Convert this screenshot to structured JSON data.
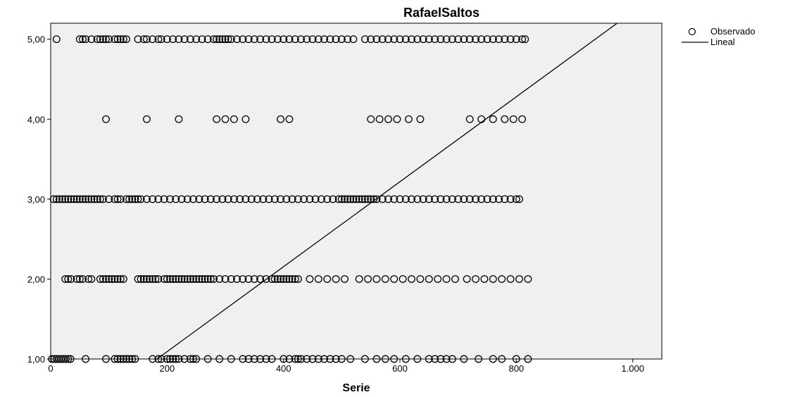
{
  "chart_data": {
    "type": "scatter",
    "title": "RafaelSaltos",
    "xlabel": "Serie",
    "ylabel": "",
    "xlim": [
      0,
      1050
    ],
    "ylim": [
      1,
      5.2
    ],
    "x_ticks": [
      {
        "value": 0,
        "label": "0"
      },
      {
        "value": 200,
        "label": "200"
      },
      {
        "value": 400,
        "label": "400"
      },
      {
        "value": 600,
        "label": "600"
      },
      {
        "value": 800,
        "label": "800"
      },
      {
        "value": 1000,
        "label": "1.000"
      }
    ],
    "y_ticks": [
      {
        "value": 1,
        "label": "1,00"
      },
      {
        "value": 2,
        "label": "2,00"
      },
      {
        "value": 3,
        "label": "3,00"
      },
      {
        "value": 4,
        "label": "4,00"
      },
      {
        "value": 5,
        "label": "5,00"
      }
    ],
    "legend": {
      "position": "top-right",
      "entries": [
        {
          "label": "Observado",
          "marker": "open-circle"
        },
        {
          "label": "Lineal",
          "marker": "line"
        }
      ]
    },
    "grid": false,
    "plot_background": "#f0f0f0",
    "series": [
      {
        "name": "Observado",
        "kind": "scatter",
        "points": [
          {
            "y": 5,
            "x": [
              10,
              50,
              55,
              60,
              70,
              80,
              85,
              90,
              95,
              100,
              110,
              115,
              120,
              125,
              130,
              150,
              160,
              165,
              175,
              185,
              190,
              200,
              210,
              220,
              230,
              240,
              250,
              260,
              270,
              280,
              285,
              290,
              295,
              300,
              305,
              310,
              320,
              330,
              340,
              350,
              360,
              370,
              380,
              390,
              400,
              410,
              420,
              430,
              440,
              450,
              460,
              470,
              480,
              490,
              500,
              510,
              520,
              540,
              550,
              560,
              570,
              580,
              590,
              600,
              610,
              620,
              630,
              640,
              650,
              660,
              670,
              680,
              690,
              700,
              710,
              720,
              730,
              740,
              750,
              760,
              770,
              780,
              790,
              800,
              810,
              815
            ]
          },
          {
            "y": 4,
            "x": [
              95,
              165,
              220,
              285,
              300,
              315,
              335,
              395,
              410,
              550,
              565,
              580,
              595,
              615,
              635,
              720,
              740,
              760,
              780,
              795,
              810
            ]
          },
          {
            "y": 3,
            "x": [
              5,
              10,
              15,
              20,
              25,
              30,
              35,
              40,
              45,
              50,
              55,
              60,
              65,
              70,
              75,
              80,
              85,
              90,
              100,
              110,
              115,
              120,
              130,
              135,
              140,
              145,
              150,
              155,
              165,
              175,
              185,
              195,
              205,
              215,
              225,
              235,
              245,
              255,
              265,
              275,
              285,
              295,
              305,
              315,
              325,
              335,
              345,
              355,
              365,
              375,
              385,
              395,
              405,
              415,
              425,
              435,
              445,
              455,
              465,
              475,
              485,
              495,
              500,
              505,
              510,
              515,
              520,
              525,
              530,
              535,
              540,
              545,
              550,
              555,
              560,
              570,
              580,
              590,
              600,
              610,
              620,
              630,
              640,
              650,
              660,
              670,
              680,
              690,
              700,
              710,
              720,
              730,
              740,
              750,
              760,
              770,
              780,
              790,
              800,
              805
            ]
          },
          {
            "y": 2,
            "x": [
              25,
              30,
              35,
              45,
              50,
              55,
              65,
              70,
              85,
              90,
              95,
              100,
              105,
              110,
              115,
              120,
              125,
              150,
              155,
              160,
              165,
              170,
              175,
              180,
              185,
              195,
              200,
              205,
              210,
              215,
              220,
              225,
              230,
              235,
              240,
              245,
              250,
              255,
              260,
              265,
              270,
              275,
              280,
              290,
              300,
              310,
              320,
              330,
              340,
              350,
              360,
              370,
              380,
              385,
              390,
              395,
              400,
              405,
              410,
              415,
              420,
              425,
              445,
              460,
              475,
              490,
              505,
              530,
              545,
              560,
              575,
              590,
              605,
              620,
              635,
              650,
              665,
              680,
              695,
              715,
              730,
              745,
              760,
              775,
              790,
              805,
              820
            ]
          },
          {
            "y": 1,
            "x": [
              2,
              6,
              10,
              14,
              18,
              22,
              26,
              30,
              34,
              60,
              95,
              110,
              115,
              120,
              125,
              130,
              135,
              140,
              145,
              175,
              185,
              190,
              200,
              205,
              210,
              215,
              220,
              230,
              240,
              245,
              250,
              270,
              290,
              310,
              330,
              340,
              350,
              360,
              370,
              380,
              400,
              410,
              420,
              425,
              430,
              440,
              450,
              460,
              470,
              480,
              490,
              500,
              515,
              540,
              560,
              575,
              590,
              610,
              630,
              650,
              660,
              670,
              680,
              690,
              710,
              735,
              760,
              775,
              800,
              820
            ]
          }
        ]
      },
      {
        "name": "Lineal",
        "kind": "line",
        "x": [
          182.7,
          973.2
        ],
        "y": [
          1,
          5.2
        ]
      }
    ]
  }
}
